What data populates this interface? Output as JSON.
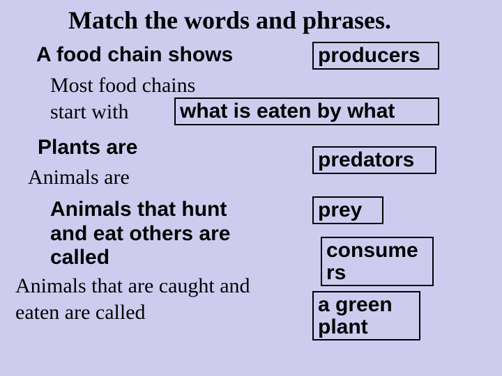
{
  "title": "Match the words and phrases.",
  "background_color": "#ceccee",
  "border_color": "#000000",
  "text_color": "#000000",
  "fonts": {
    "serif": "Times New Roman",
    "sans": "Arial"
  },
  "prompts": {
    "p1": "A food chain shows",
    "p2": "Most food chains\nstart with",
    "p3": "Plants are",
    "p4": "Animals are",
    "p5": "Animals that hunt\nand eat others are\ncalled",
    "p6": "Animals that are caught and\neaten are called"
  },
  "answers": {
    "a1": "producers",
    "a2": "what is eaten by what",
    "a3": "predators",
    "a4": "prey",
    "a5": "consume\nrs",
    "a6": "a green\nplant"
  }
}
